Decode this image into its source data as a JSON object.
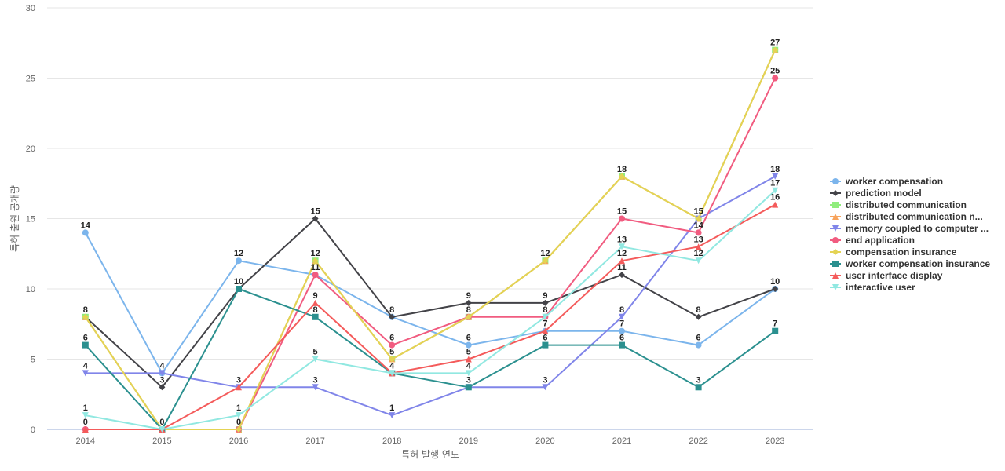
{
  "chart_data": {
    "type": "line",
    "xlabel": "특허 발행 연도",
    "ylabel": "특허 출원 공개량",
    "ylim": [
      0,
      30
    ],
    "yticks": [
      0,
      5,
      10,
      15,
      20,
      25,
      30
    ],
    "grid": true,
    "legend_position": "right",
    "categories": [
      "2014",
      "2015",
      "2016",
      "2017",
      "2018",
      "2019",
      "2020",
      "2021",
      "2022",
      "2023"
    ],
    "series": [
      {
        "name": "worker compensation",
        "color": "#7cb5ec",
        "marker": "circle",
        "values": [
          14,
          4,
          12,
          11,
          8,
          6,
          7,
          7,
          6,
          10
        ]
      },
      {
        "name": "prediction model",
        "color": "#434348",
        "marker": "diamond",
        "values": [
          8,
          3,
          10,
          15,
          8,
          9,
          9,
          11,
          8,
          10
        ]
      },
      {
        "name": "distributed communication",
        "color": "#90ed7d",
        "marker": "square",
        "values": [
          8,
          0,
          0,
          12,
          5,
          8,
          12,
          18,
          15,
          27
        ]
      },
      {
        "name": "distributed communication n...",
        "color": "#f7a35c",
        "marker": "triangle",
        "values": [
          8,
          0,
          0,
          12,
          5,
          8,
          12,
          18,
          15,
          27
        ]
      },
      {
        "name": "memory coupled to computer ...",
        "color": "#8085e9",
        "marker": "triangle-down",
        "values": [
          4,
          4,
          3,
          3,
          1,
          3,
          3,
          8,
          15,
          18
        ]
      },
      {
        "name": "end application",
        "color": "#f15c80",
        "marker": "circle",
        "values": [
          0,
          0,
          0,
          11,
          6,
          8,
          8,
          15,
          14,
          25
        ]
      },
      {
        "name": "compensation insurance",
        "color": "#e4d354",
        "marker": "diamond",
        "values": [
          8,
          0,
          0,
          12,
          5,
          8,
          12,
          18,
          15,
          27
        ]
      },
      {
        "name": "worker compensation insurance",
        "color": "#2b908f",
        "marker": "square",
        "values": [
          6,
          0,
          10,
          8,
          4,
          3,
          6,
          6,
          3,
          7
        ]
      },
      {
        "name": "user interface display",
        "color": "#f45b5b",
        "marker": "triangle",
        "values": [
          0,
          0,
          3,
          9,
          4,
          5,
          7,
          12,
          13,
          16
        ]
      },
      {
        "name": "interactive user",
        "color": "#91e8e1",
        "marker": "triangle-down",
        "values": [
          1,
          0,
          1,
          5,
          4,
          4,
          8,
          13,
          12,
          17
        ]
      }
    ],
    "data_labels": [
      {
        "x": "2014",
        "y": 14,
        "text": "14"
      },
      {
        "x": "2014",
        "y": 8,
        "text": "8"
      },
      {
        "x": "2014",
        "y": 6,
        "text": "6"
      },
      {
        "x": "2014",
        "y": 4,
        "text": "4"
      },
      {
        "x": "2014",
        "y": 1,
        "text": "1"
      },
      {
        "x": "2014",
        "y": 0,
        "text": "0"
      },
      {
        "x": "2015",
        "y": 4,
        "text": "4"
      },
      {
        "x": "2015",
        "y": 3,
        "text": "3"
      },
      {
        "x": "2015",
        "y": 0,
        "text": "0"
      },
      {
        "x": "2016",
        "y": 12,
        "text": "12"
      },
      {
        "x": "2016",
        "y": 10,
        "text": "10"
      },
      {
        "x": "2016",
        "y": 3,
        "text": "3"
      },
      {
        "x": "2016",
        "y": 1,
        "text": "1"
      },
      {
        "x": "2016",
        "y": 0,
        "text": "0"
      },
      {
        "x": "2017",
        "y": 15,
        "text": "15"
      },
      {
        "x": "2017",
        "y": 12,
        "text": "12"
      },
      {
        "x": "2017",
        "y": 11,
        "text": "11"
      },
      {
        "x": "2017",
        "y": 9,
        "text": "9"
      },
      {
        "x": "2017",
        "y": 8,
        "text": "8"
      },
      {
        "x": "2017",
        "y": 5,
        "text": "5"
      },
      {
        "x": "2017",
        "y": 3,
        "text": "3"
      },
      {
        "x": "2018",
        "y": 8,
        "text": "8"
      },
      {
        "x": "2018",
        "y": 6,
        "text": "6"
      },
      {
        "x": "2018",
        "y": 5,
        "text": "5"
      },
      {
        "x": "2018",
        "y": 4,
        "text": "4"
      },
      {
        "x": "2018",
        "y": 1,
        "text": "1"
      },
      {
        "x": "2019",
        "y": 9,
        "text": "9"
      },
      {
        "x": "2019",
        "y": 8,
        "text": "8"
      },
      {
        "x": "2019",
        "y": 6,
        "text": "6"
      },
      {
        "x": "2019",
        "y": 5,
        "text": "5"
      },
      {
        "x": "2019",
        "y": 4,
        "text": "4"
      },
      {
        "x": "2019",
        "y": 3,
        "text": "3"
      },
      {
        "x": "2020",
        "y": 12,
        "text": "12"
      },
      {
        "x": "2020",
        "y": 9,
        "text": "9"
      },
      {
        "x": "2020",
        "y": 8,
        "text": "8"
      },
      {
        "x": "2020",
        "y": 7,
        "text": "7"
      },
      {
        "x": "2020",
        "y": 6,
        "text": "6"
      },
      {
        "x": "2020",
        "y": 3,
        "text": "3"
      },
      {
        "x": "2021",
        "y": 18,
        "text": "18"
      },
      {
        "x": "2021",
        "y": 15,
        "text": "15"
      },
      {
        "x": "2021",
        "y": 13,
        "text": "13"
      },
      {
        "x": "2021",
        "y": 12,
        "text": "12"
      },
      {
        "x": "2021",
        "y": 11,
        "text": "11"
      },
      {
        "x": "2021",
        "y": 8,
        "text": "8"
      },
      {
        "x": "2021",
        "y": 7,
        "text": "7"
      },
      {
        "x": "2021",
        "y": 6,
        "text": "6"
      },
      {
        "x": "2022",
        "y": 15,
        "text": "15"
      },
      {
        "x": "2022",
        "y": 14,
        "text": "14"
      },
      {
        "x": "2022",
        "y": 13,
        "text": "13"
      },
      {
        "x": "2022",
        "y": 12,
        "text": "12"
      },
      {
        "x": "2022",
        "y": 8,
        "text": "8"
      },
      {
        "x": "2022",
        "y": 6,
        "text": "6"
      },
      {
        "x": "2022",
        "y": 3,
        "text": "3"
      },
      {
        "x": "2023",
        "y": 27,
        "text": "27"
      },
      {
        "x": "2023",
        "y": 25,
        "text": "25"
      },
      {
        "x": "2023",
        "y": 18,
        "text": "18"
      },
      {
        "x": "2023",
        "y": 17,
        "text": "17"
      },
      {
        "x": "2023",
        "y": 16,
        "text": "16"
      },
      {
        "x": "2023",
        "y": 10,
        "text": "10"
      },
      {
        "x": "2023",
        "y": 7,
        "text": "7"
      }
    ]
  }
}
